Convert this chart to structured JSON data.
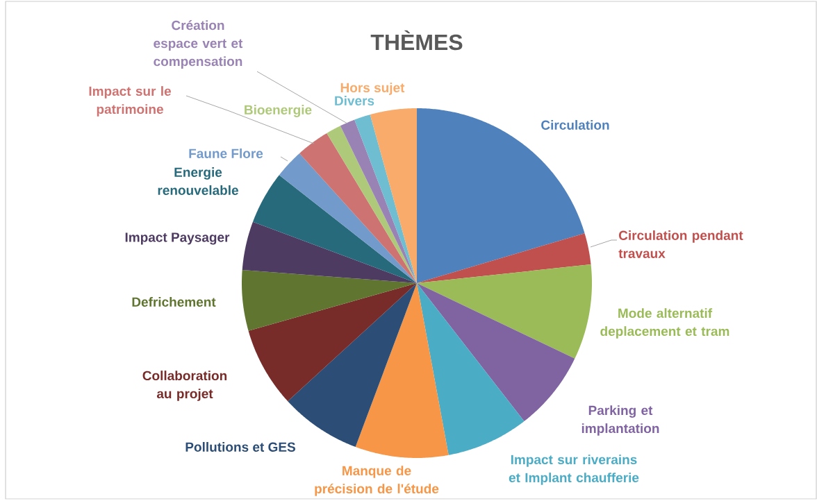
{
  "chart_data": {
    "type": "pie",
    "title": "THÈMES",
    "categories": [
      "Circulation",
      "Circulation pendant travaux",
      "Mode alternatif deplacement et tram",
      "Parking et implantation",
      "Impact sur riverains et Implant chaufferie",
      "Manque de précision de l'étude",
      "Pollutions et GES",
      "Collaboration au projet",
      "Defrichement",
      "Impact Paysager",
      "Energie renouvelable",
      "Faune Flore",
      "Impact sur le patrimoine",
      "Bioenergie",
      "Création espace vert et compensation",
      "Divers",
      "Hors sujet"
    ],
    "values": [
      20.4,
      2.9,
      8.8,
      7.4,
      7.6,
      8.6,
      7.5,
      7.4,
      5.6,
      4.5,
      4.9,
      2.7,
      3.1,
      1.4,
      1.4,
      1.5,
      4.3
    ],
    "colors": [
      "#4f81bd",
      "#c0504d",
      "#9bbb59",
      "#8064a2",
      "#4bacc6",
      "#f79646",
      "#2c4d75",
      "#772c2a",
      "#5f7530",
      "#4d3b62",
      "#276a7c",
      "#729aca",
      "#cd7371",
      "#afc97a",
      "#9983b5",
      "#6fbdd1",
      "#f9ab6b"
    ]
  }
}
